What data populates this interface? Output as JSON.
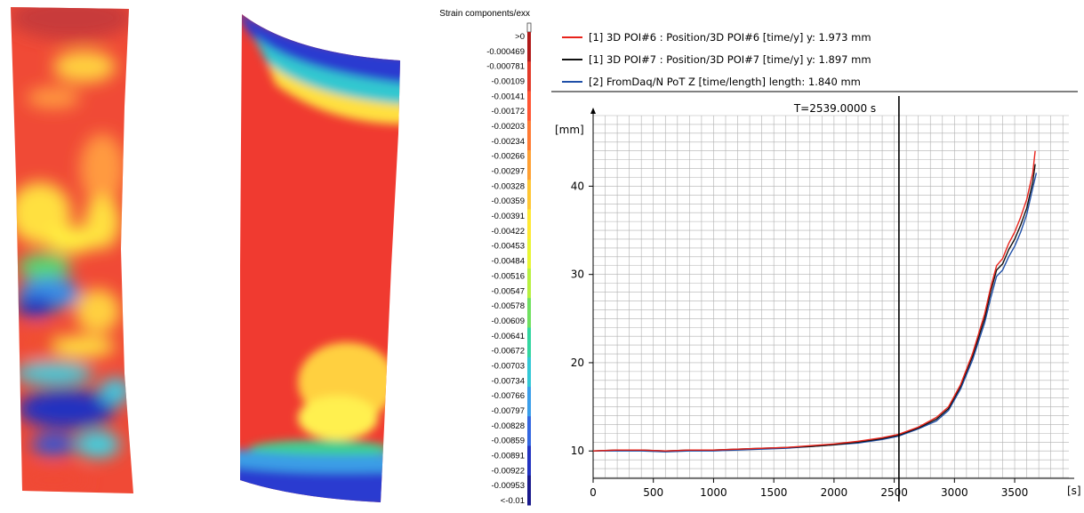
{
  "colormap": {
    "title": "Strain components/exx",
    "labels": [
      ">0",
      "-0.000469",
      "-0.000781",
      "-0.00109",
      "-0.00141",
      "-0.00172",
      "-0.00203",
      "-0.00234",
      "-0.00266",
      "-0.00297",
      "-0.00328",
      "-0.00359",
      "-0.00391",
      "-0.00422",
      "-0.00453",
      "-0.00484",
      "-0.00516",
      "-0.00547",
      "-0.00578",
      "-0.00609",
      "-0.00641",
      "-0.00672",
      "-0.00703",
      "-0.00734",
      "-0.00766",
      "-0.00797",
      "-0.00828",
      "-0.00859",
      "-0.00891",
      "-0.00922",
      "-0.00953",
      "<-0.01"
    ],
    "colors": [
      "#b01a1a",
      "#e23a2a",
      "#ff5533",
      "#ff7a33",
      "#ffa033",
      "#ffc633",
      "#ffe833",
      "#e8f533",
      "#b8f040",
      "#70e060",
      "#33d6a0",
      "#33c8d6",
      "#3a9eea",
      "#3366e0",
      "#2233c0",
      "#1a1a8c"
    ]
  },
  "chart_data": {
    "type": "line",
    "title": "T=2539.0000 s",
    "xlabel": "[s]",
    "ylabel": "[mm]",
    "xlim": [
      0,
      3950
    ],
    "ylim": [
      6.9,
      48
    ],
    "xticks": [
      0,
      500,
      1000,
      1500,
      2000,
      2500,
      3000,
      3500
    ],
    "yticks": [
      10,
      20,
      30,
      40
    ],
    "cursor_x": 2539,
    "grid": true,
    "legend_position": "top",
    "series": [
      {
        "name": "[1] 3D POI#6 : Position/3D POI#6 [time/y] y: 1.973 mm",
        "color": "#e8231b",
        "x": [
          0,
          200,
          400,
          600,
          800,
          1000,
          1200,
          1400,
          1600,
          1800,
          2000,
          2200,
          2400,
          2539,
          2700,
          2850,
          2950,
          3050,
          3150,
          3250,
          3300,
          3350,
          3400,
          3450,
          3500,
          3550,
          3600,
          3650,
          3670
        ],
        "y": [
          10.0,
          10.1,
          10.1,
          10.0,
          10.1,
          10.1,
          10.2,
          10.3,
          10.4,
          10.6,
          10.8,
          11.1,
          11.5,
          11.9,
          12.7,
          13.8,
          15.0,
          17.5,
          21.0,
          25.5,
          28.5,
          31.0,
          31.8,
          33.5,
          34.8,
          36.5,
          38.5,
          41.5,
          44.0
        ]
      },
      {
        "name": "[1] 3D POI#7 : Position/3D POI#7 [time/y] y: 1.897 mm",
        "color": "#111111",
        "x": [
          0,
          200,
          400,
          600,
          800,
          1000,
          1200,
          1400,
          1600,
          1800,
          2000,
          2200,
          2400,
          2539,
          2700,
          2850,
          2950,
          3050,
          3150,
          3250,
          3300,
          3350,
          3400,
          3450,
          3500,
          3550,
          3600,
          3650,
          3670
        ],
        "y": [
          10.0,
          10.1,
          10.1,
          10.0,
          10.1,
          10.1,
          10.2,
          10.3,
          10.4,
          10.5,
          10.7,
          11.0,
          11.4,
          11.8,
          12.6,
          13.6,
          14.8,
          17.3,
          20.7,
          25.0,
          28.0,
          30.5,
          31.2,
          32.8,
          34.0,
          35.6,
          37.5,
          40.5,
          42.5
        ]
      },
      {
        "name": "[2] FromDaq/N PoT  Z [time/length] length: 1.840 mm",
        "color": "#1f4fa8",
        "x": [
          0,
          200,
          400,
          600,
          800,
          1000,
          1200,
          1400,
          1600,
          1800,
          2000,
          2200,
          2400,
          2539,
          2700,
          2850,
          2950,
          3050,
          3150,
          3250,
          3300,
          3350,
          3400,
          3450,
          3500,
          3550,
          3600,
          3650,
          3680
        ],
        "y": [
          10.0,
          10.0,
          10.0,
          9.9,
          10.0,
          10.0,
          10.1,
          10.2,
          10.3,
          10.5,
          10.7,
          10.9,
          11.3,
          11.7,
          12.5,
          13.4,
          14.6,
          17.0,
          20.3,
          24.5,
          27.3,
          29.8,
          30.5,
          32.0,
          33.2,
          34.8,
          36.8,
          39.8,
          41.5
        ]
      }
    ]
  }
}
